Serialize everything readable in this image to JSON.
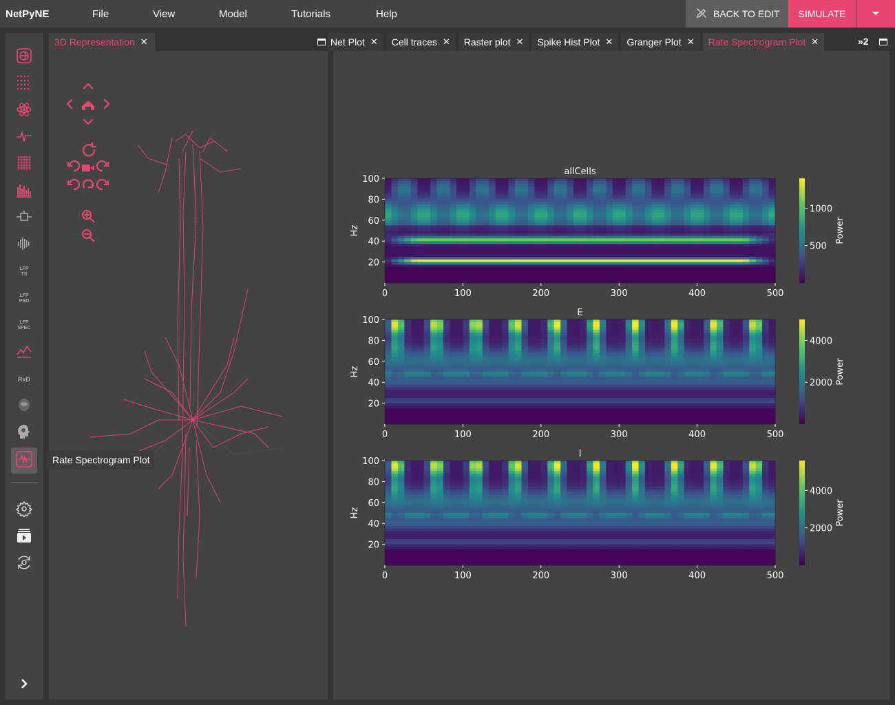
{
  "app": {
    "name": "NetPyNE"
  },
  "menu": [
    {
      "label": "File"
    },
    {
      "label": "View"
    },
    {
      "label": "Model"
    },
    {
      "label": "Tutorials"
    },
    {
      "label": "Help"
    }
  ],
  "toolbar": {
    "back_label": "BACK TO EDIT",
    "simulate_label": "SIMULATE"
  },
  "sidebar": {
    "texts": {
      "lfp_ts": "LFP\nTS",
      "lfp_psd": "LFP\nPSD",
      "lfp_spec": "LFP\nSPEC",
      "rxd": "RxD"
    },
    "tooltip": "Rate Spectrogram Plot"
  },
  "left_panel": {
    "tab_label": "3D Representation"
  },
  "right_panel": {
    "tabs": [
      {
        "label": "Net Plot"
      },
      {
        "label": "Cell traces"
      },
      {
        "label": "Raster plot"
      },
      {
        "label": "Spike Hist Plot"
      },
      {
        "label": "Granger Plot"
      },
      {
        "label": "Rate Spectrogram Plot"
      }
    ],
    "more_label": "»2"
  },
  "colors": {
    "accent": "#e9466f",
    "panel": "#434343",
    "background": "#333333"
  },
  "chart_data": [
    {
      "type": "heatmap",
      "title": "allCells",
      "ylabel": "Hz",
      "xlim": [
        0,
        500
      ],
      "ylim": [
        0,
        100
      ],
      "x_ticks": [
        0,
        100,
        200,
        300,
        400,
        500
      ],
      "y_ticks": [
        20,
        40,
        60,
        80,
        100
      ],
      "colorbar": {
        "label": "Power",
        "ticks": [
          500,
          1000
        ],
        "range": [
          0,
          1400
        ]
      }
    },
    {
      "type": "heatmap",
      "title": "E",
      "ylabel": "Hz",
      "xlim": [
        0,
        500
      ],
      "ylim": [
        0,
        100
      ],
      "x_ticks": [
        0,
        100,
        200,
        300,
        400,
        500
      ],
      "y_ticks": [
        20,
        40,
        60,
        80,
        100
      ],
      "colorbar": {
        "label": "Power",
        "ticks": [
          2000,
          4000
        ],
        "range": [
          0,
          5000
        ]
      }
    },
    {
      "type": "heatmap",
      "title": "I",
      "ylabel": "Hz",
      "xlim": [
        0,
        500
      ],
      "ylim": [
        0,
        100
      ],
      "x_ticks": [
        0,
        100,
        200,
        300,
        400,
        500
      ],
      "y_ticks": [
        20,
        40,
        60,
        80,
        100
      ],
      "colorbar": {
        "label": "Power",
        "ticks": [
          2000,
          4000
        ],
        "range": [
          0,
          5600
        ]
      }
    }
  ]
}
